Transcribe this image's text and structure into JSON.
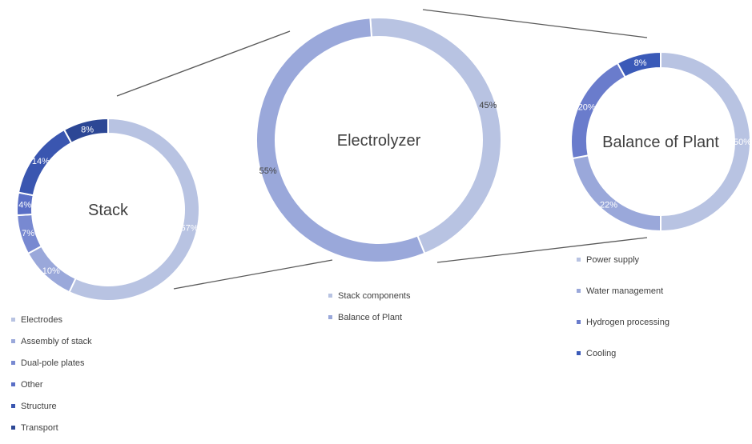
{
  "chart_data": [
    {
      "type": "pie",
      "title": "Electrolyzer",
      "labels": [
        "Stack components",
        "Balance of Plant"
      ],
      "values": [
        45,
        55
      ],
      "value_labels": [
        "45%",
        "55%"
      ],
      "colors": [
        "#b8c3e2",
        "#9aa8da"
      ]
    },
    {
      "type": "pie",
      "title": "Stack",
      "labels": [
        "Electrodes",
        "Assembly of stack",
        "Dual-pole plates",
        "Other",
        "Structure",
        "Transport"
      ],
      "values": [
        57,
        10,
        7,
        4,
        14,
        8
      ],
      "value_labels": [
        "57%",
        "10%",
        "7%",
        "4%",
        "14%",
        "8%"
      ],
      "colors": [
        "#b8c3e2",
        "#9aa8da",
        "#7889d1",
        "#5a6fc6",
        "#3a56b0",
        "#2c4795"
      ]
    },
    {
      "type": "pie",
      "title": "Balance of Plant",
      "labels": [
        "Power supply",
        "Water management",
        "Hydrogen processing",
        "Cooling"
      ],
      "values": [
        50,
        22,
        20,
        8
      ],
      "value_labels": [
        "50%",
        "22%",
        "20%",
        "8%"
      ],
      "colors": [
        "#b8c3e2",
        "#9aa8da",
        "#6a7ccc",
        "#3a5ab8"
      ]
    }
  ],
  "legends": {
    "stack": [
      "Electrodes",
      "Assembly of stack",
      "Dual-pole plates",
      "Other",
      "Structure",
      "Transport"
    ],
    "electrolyzer": [
      "Stack components",
      "Balance of Plant"
    ],
    "balance_of_plant": [
      "Power supply",
      "Water management",
      "Hydrogen processing",
      "Cooling"
    ]
  }
}
